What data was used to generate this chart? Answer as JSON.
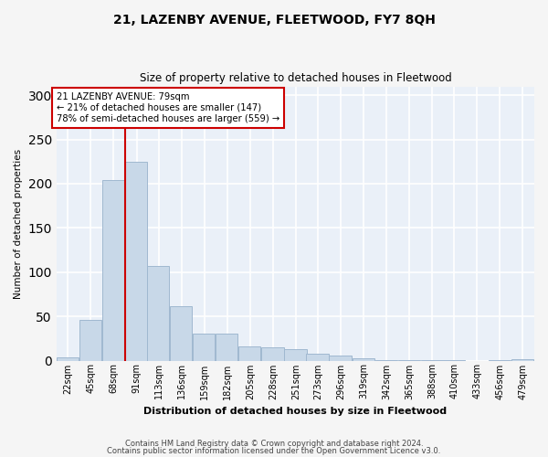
{
  "title": "21, LAZENBY AVENUE, FLEETWOOD, FY7 8QH",
  "subtitle": "Size of property relative to detached houses in Fleetwood",
  "xlabel": "Distribution of detached houses by size in Fleetwood",
  "ylabel": "Number of detached properties",
  "bar_color": "#c8d8e8",
  "bar_edge_color": "#a0b8d0",
  "background_color": "#eaf0f8",
  "grid_color": "#ffffff",
  "bins": [
    22,
    45,
    68,
    91,
    113,
    136,
    159,
    182,
    205,
    228,
    251,
    273,
    296,
    319,
    342,
    365,
    388,
    410,
    433,
    456,
    479
  ],
  "bin_labels": [
    "22sqm",
    "45sqm",
    "68sqm",
    "91sqm",
    "113sqm",
    "136sqm",
    "159sqm",
    "182sqm",
    "205sqm",
    "228sqm",
    "251sqm",
    "273sqm",
    "296sqm",
    "319sqm",
    "342sqm",
    "365sqm",
    "388sqm",
    "410sqm",
    "433sqm",
    "456sqm",
    "479sqm"
  ],
  "values": [
    4,
    46,
    204,
    225,
    107,
    62,
    30,
    30,
    16,
    15,
    13,
    8,
    6,
    3,
    1,
    1,
    1,
    1,
    0,
    1,
    2
  ],
  "property_line_color": "#cc0000",
  "annotation_text": "21 LAZENBY AVENUE: 79sqm\n← 21% of detached houses are smaller (147)\n78% of semi-detached houses are larger (559) →",
  "annotation_box_color": "#ffffff",
  "annotation_box_edge_color": "#cc0000",
  "ylim": [
    0,
    310
  ],
  "yticks": [
    0,
    50,
    100,
    150,
    200,
    250,
    300
  ],
  "footer1": "Contains HM Land Registry data © Crown copyright and database right 2024.",
  "footer2": "Contains public sector information licensed under the Open Government Licence v3.0."
}
